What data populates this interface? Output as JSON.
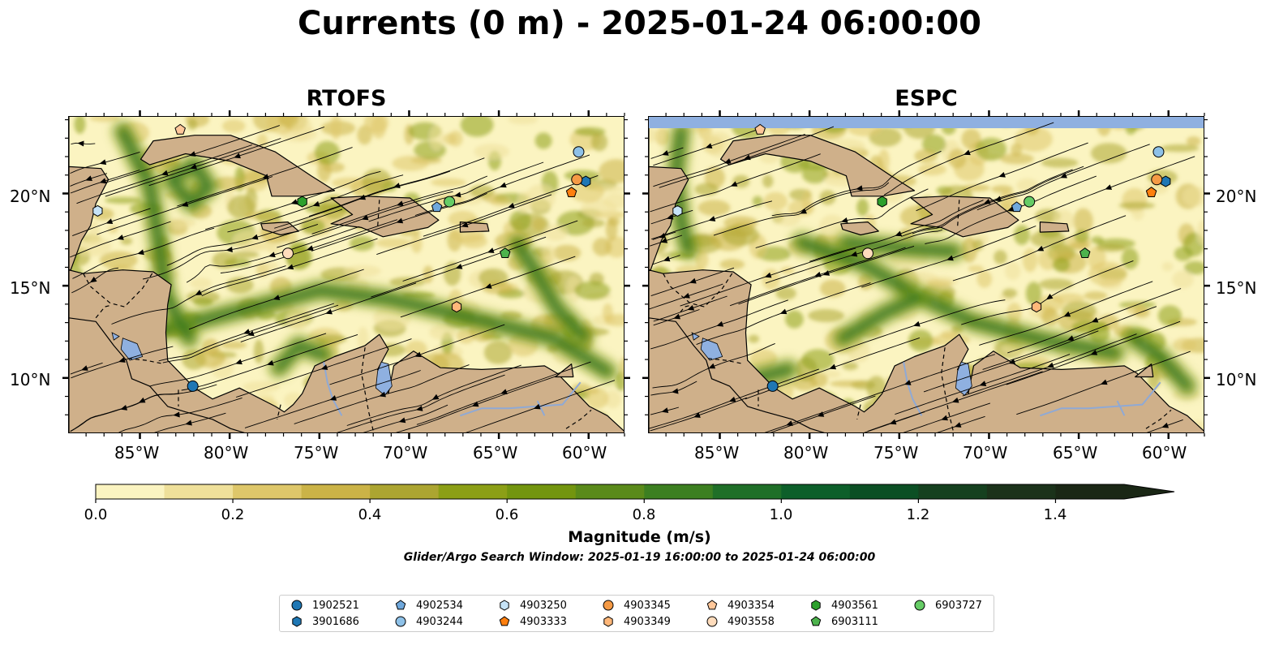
{
  "title": "Currents (0 m) - 2025-01-24 06:00:00",
  "panels": [
    {
      "title": "RTOFS"
    },
    {
      "title": "ESPC"
    }
  ],
  "map": {
    "lon_range": [
      -89,
      -58
    ],
    "lat_range": [
      7,
      24.2
    ],
    "lon_ticks": [
      "85°W",
      "80°W",
      "75°W",
      "70°W",
      "65°W",
      "60°W"
    ],
    "lat_ticks": [
      "20°N",
      "15°N",
      "10°N"
    ],
    "colors": {
      "land": "#cfb08a",
      "water_light": "#fbf4c1",
      "lakes": "#8fb0e0",
      "rivers": "#8fa9d5"
    }
  },
  "colorbar": {
    "label": "Magnitude (m/s)",
    "ticks": [
      "0.0",
      "0.2",
      "0.4",
      "0.6",
      "0.8",
      "1.0",
      "1.2",
      "1.4"
    ],
    "range": [
      0,
      1.5
    ],
    "extend": "max",
    "colors": [
      "#fbf4c1",
      "#efe09a",
      "#dec76a",
      "#cbb347",
      "#aca531",
      "#8c9f16",
      "#73950f",
      "#5a8a1a",
      "#3c7f21",
      "#1f6f28",
      "#0d5f2a",
      "#0b4f24",
      "#15401f",
      "#1b321a",
      "#1a2715"
    ]
  },
  "search_window": "Glider/Argo Search Window: 2025-01-19 16:00:00 to 2025-01-24 06:00:00",
  "legend": [
    {
      "label": "1902521",
      "color": "#1f77b4",
      "marker": "circle"
    },
    {
      "label": "3901686",
      "color": "#1f77b4",
      "marker": "hexagon"
    },
    {
      "label": "4902534",
      "color": "#6fa8dc",
      "marker": "pentagon"
    },
    {
      "label": "4903244",
      "color": "#8ec1e8",
      "marker": "circle"
    },
    {
      "label": "4903250",
      "color": "#c6e3f7",
      "marker": "hexagon"
    },
    {
      "label": "4903333",
      "color": "#ff7f0e",
      "marker": "pentagon"
    },
    {
      "label": "4903345",
      "color": "#f59a45",
      "marker": "circle"
    },
    {
      "label": "4903349",
      "color": "#ffb779",
      "marker": "hexagon"
    },
    {
      "label": "4903354",
      "color": "#ffc79a",
      "marker": "pentagon"
    },
    {
      "label": "4903558",
      "color": "#ffdcbc",
      "marker": "circle"
    },
    {
      "label": "4903561",
      "color": "#2ca02c",
      "marker": "hexagon"
    },
    {
      "label": "6903111",
      "color": "#4db34d",
      "marker": "pentagon"
    },
    {
      "label": "6903727",
      "color": "#66cc66",
      "marker": "circle"
    }
  ],
  "floats": [
    {
      "id": "1902521",
      "lon": -82.1,
      "lat": 9.6
    },
    {
      "id": "3901686",
      "lon": -60.2,
      "lat": 20.7
    },
    {
      "id": "4902534",
      "lon": -68.5,
      "lat": 19.3
    },
    {
      "id": "4903244",
      "lon": -60.6,
      "lat": 22.3
    },
    {
      "id": "4903250",
      "lon": -87.4,
      "lat": 19.1
    },
    {
      "id": "4903333",
      "lon": -61.0,
      "lat": 20.1
    },
    {
      "id": "4903345",
      "lon": -60.7,
      "lat": 20.8
    },
    {
      "id": "4903349",
      "lon": -67.4,
      "lat": 13.9
    },
    {
      "id": "4903354",
      "lon": -82.8,
      "lat": 23.5
    },
    {
      "id": "4903558",
      "lon": -76.8,
      "lat": 16.8
    },
    {
      "id": "4903561",
      "lon": -76.0,
      "lat": 19.6
    },
    {
      "id": "6903111",
      "lon": -64.7,
      "lat": 16.8
    },
    {
      "id": "6903727",
      "lon": -67.8,
      "lat": 19.6
    }
  ]
}
